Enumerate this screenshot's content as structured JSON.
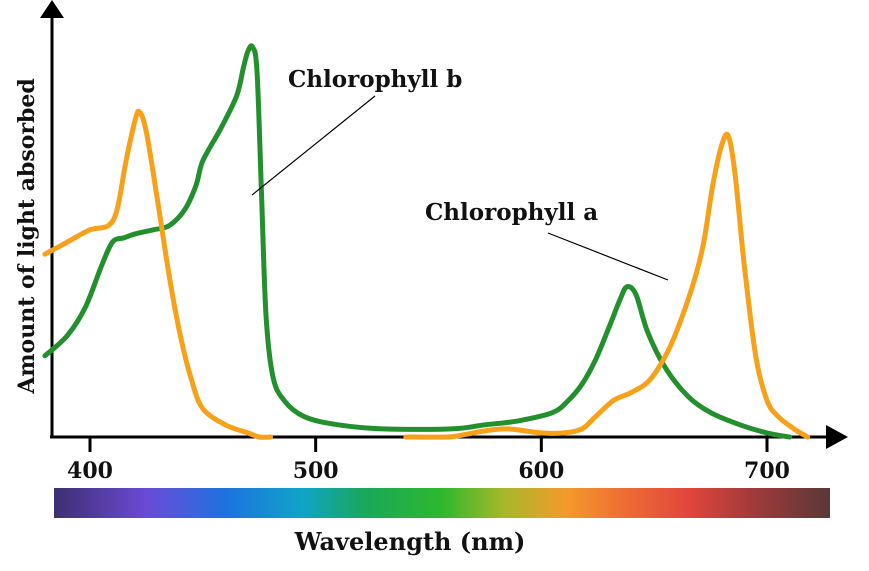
{
  "chart_data": {
    "type": "line",
    "title": "",
    "xlabel": "Wavelength (nm)",
    "ylabel": "Amount of light absorbed",
    "xlim": [
      380,
      780
    ],
    "ylim": [
      0,
      100
    ],
    "x_ticks": [
      400,
      500,
      600,
      700
    ],
    "grid": false,
    "legend": "inline annotations",
    "has_spectrum_bar": true,
    "series": [
      {
        "name": "Chlorophyll a",
        "color": "#F7A11A",
        "points": [
          [
            380,
            45
          ],
          [
            390,
            48
          ],
          [
            400,
            51
          ],
          [
            408,
            52
          ],
          [
            412,
            56
          ],
          [
            416,
            68
          ],
          [
            420,
            78
          ],
          [
            422,
            80
          ],
          [
            425,
            75
          ],
          [
            430,
            58
          ],
          [
            435,
            40
          ],
          [
            440,
            25
          ],
          [
            445,
            14
          ],
          [
            450,
            7
          ],
          [
            460,
            3
          ],
          [
            470,
            1
          ],
          [
            475,
            0
          ],
          [
            480,
            0
          ],
          [
            540,
            0
          ],
          [
            558,
            0
          ],
          [
            565,
            0.5
          ],
          [
            575,
            1.5
          ],
          [
            585,
            2
          ],
          [
            600,
            1
          ],
          [
            610,
            1
          ],
          [
            618,
            2
          ],
          [
            624,
            5
          ],
          [
            632,
            9
          ],
          [
            640,
            11
          ],
          [
            648,
            14
          ],
          [
            656,
            21
          ],
          [
            662,
            29
          ],
          [
            668,
            39
          ],
          [
            672,
            48
          ],
          [
            676,
            62
          ],
          [
            680,
            72
          ],
          [
            683,
            74
          ],
          [
            686,
            64
          ],
          [
            690,
            42
          ],
          [
            695,
            20
          ],
          [
            700,
            9
          ],
          [
            705,
            5
          ],
          [
            712,
            2
          ],
          [
            718,
            0
          ]
        ]
      },
      {
        "name": "Chlorophyll b",
        "color": "#23902E",
        "points": [
          [
            380,
            20
          ],
          [
            390,
            25
          ],
          [
            398,
            32
          ],
          [
            405,
            42
          ],
          [
            410,
            48
          ],
          [
            415,
            49
          ],
          [
            420,
            50
          ],
          [
            428,
            51
          ],
          [
            435,
            52
          ],
          [
            442,
            56
          ],
          [
            447,
            62
          ],
          [
            450,
            68
          ],
          [
            458,
            76
          ],
          [
            465,
            84
          ],
          [
            468,
            91
          ],
          [
            470,
            95
          ],
          [
            472,
            96
          ],
          [
            474,
            90
          ],
          [
            476,
            60
          ],
          [
            478,
            30
          ],
          [
            481,
            15
          ],
          [
            486,
            9
          ],
          [
            495,
            5
          ],
          [
            510,
            3
          ],
          [
            530,
            2
          ],
          [
            560,
            2
          ],
          [
            575,
            3
          ],
          [
            590,
            4
          ],
          [
            605,
            6
          ],
          [
            612,
            9
          ],
          [
            618,
            13
          ],
          [
            624,
            19
          ],
          [
            630,
            27
          ],
          [
            635,
            34
          ],
          [
            638,
            37
          ],
          [
            642,
            35
          ],
          [
            647,
            26
          ],
          [
            655,
            17
          ],
          [
            665,
            10
          ],
          [
            675,
            6
          ],
          [
            688,
            3
          ],
          [
            700,
            1
          ],
          [
            710,
            0
          ]
        ]
      }
    ],
    "annotations": [
      {
        "text": "Chlorophyll b",
        "series": "Chlorophyll b"
      },
      {
        "text": "Chlorophyll a",
        "series": "Chlorophyll a"
      }
    ]
  }
}
